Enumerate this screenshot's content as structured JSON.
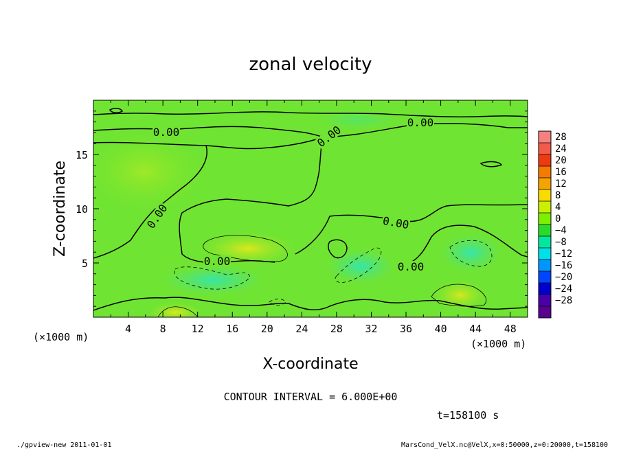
{
  "chart_data": {
    "type": "heatmap",
    "title": "zonal velocity",
    "xlabel": "X-coordinate",
    "ylabel": "Z-coordinate",
    "x_unit_label": "(×1000 m)",
    "y_unit_label": "(×1000 m)",
    "xlim": [
      0,
      50
    ],
    "ylim": [
      0,
      20
    ],
    "x_ticks": [
      4,
      8,
      12,
      16,
      20,
      24,
      28,
      32,
      36,
      40,
      44,
      48
    ],
    "y_ticks": [
      5,
      10,
      15
    ],
    "colorbar": {
      "levels": [
        28,
        24,
        20,
        16,
        12,
        8,
        4,
        0,
        -4,
        -8,
        -12,
        -16,
        -20,
        -24,
        -28
      ],
      "colors": [
        "#f48080",
        "#f25a4a",
        "#ee3a10",
        "#f47a00",
        "#f4a300",
        "#f8dc00",
        "#c8f000",
        "#7cf000",
        "#2adc2a",
        "#00e8a0",
        "#00e0e8",
        "#0096ff",
        "#0046ff",
        "#0000cc",
        "#4a00a8",
        "#5a0090"
      ]
    },
    "contour_labels": [
      "0.00",
      "0.00",
      "0.00",
      "0.00",
      "0.00",
      "0.00",
      "0.00"
    ],
    "contour_interval_text": "CONTOUR INTERVAL = 6.000E+00",
    "time_text": "t=158100 s"
  },
  "footer": {
    "left": "./gpview-new  2011-01-01",
    "right": "MarsCond_VelX.nc@VelX,x=0:50000,z=0:20000,t=158100"
  }
}
